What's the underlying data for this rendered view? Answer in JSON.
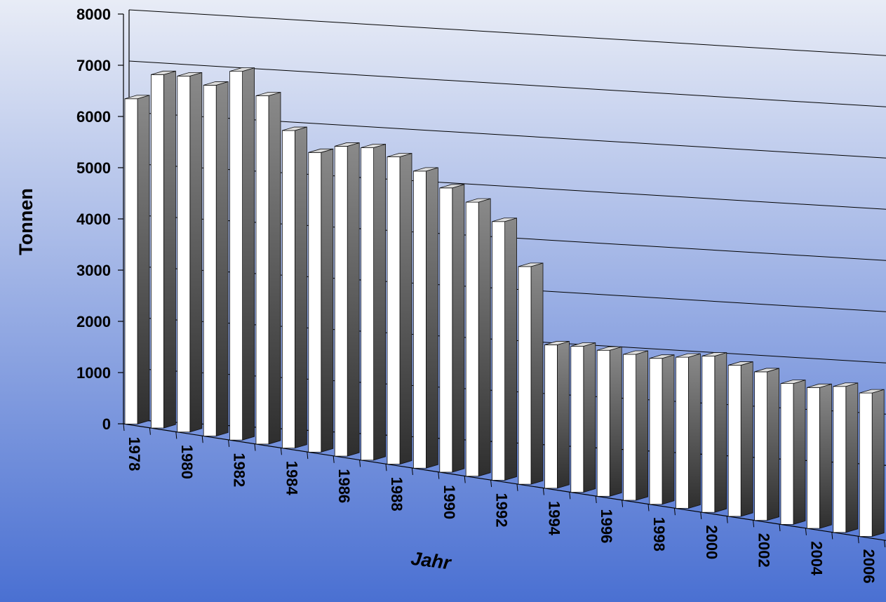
{
  "chart_data": {
    "type": "bar",
    "title": "",
    "xlabel": "Jahr",
    "ylabel": "Tonnen",
    "ylim": [
      0,
      8000
    ],
    "y_ticks": [
      0,
      1000,
      2000,
      3000,
      4000,
      5000,
      6000,
      7000,
      8000
    ],
    "y_tick_labels": [
      "0",
      "1000",
      "2000",
      "3000",
      "4000",
      "5000",
      "6000",
      "7000",
      "8000"
    ],
    "x_tick_labels": [
      "1978",
      "1980",
      "1982",
      "1984",
      "1986",
      "1988",
      "1990",
      "1992",
      "1994",
      "1996",
      "1998",
      "2000",
      "2002",
      "2004",
      "2006"
    ],
    "categories": [
      "1978",
      "1979",
      "1980",
      "1981",
      "1982",
      "1983",
      "1984",
      "1985",
      "1986",
      "1987",
      "1988",
      "1989",
      "1990",
      "1991",
      "1992",
      "1993",
      "1994",
      "1995",
      "1996",
      "1997",
      "1998",
      "1999",
      "2000",
      "2001",
      "2002",
      "2003",
      "2004",
      "2005",
      "2006"
    ],
    "values": [
      6350,
      6900,
      6950,
      6850,
      7200,
      6800,
      6200,
      5850,
      6050,
      6100,
      6000,
      5800,
      5550,
      5350,
      5050,
      4250,
      2800,
      2850,
      2850,
      2850,
      2850,
      2950,
      3050,
      2950,
      2900,
      2750,
      2750,
      2850,
      2800
    ],
    "grid": true,
    "style": "3d",
    "colors": {
      "background_top": "#e8ecf6",
      "background_bottom": "#4a70d2",
      "bar_front_light": "#ffffff",
      "bar_side_top": "#8a8a8a",
      "bar_side_bottom": "#2e2e2e",
      "gridline": "#000000"
    }
  }
}
